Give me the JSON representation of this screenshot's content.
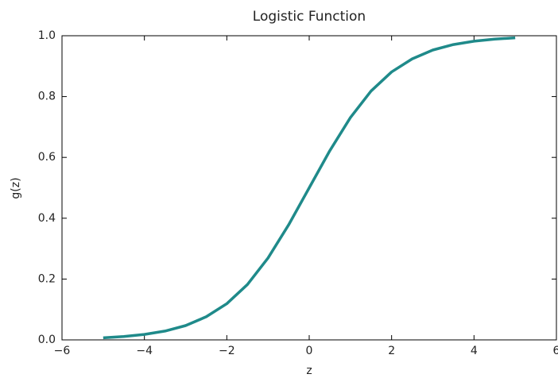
{
  "chart_data": {
    "type": "line",
    "title": "Logistic Function",
    "xlabel": "z",
    "ylabel": "g(z)",
    "x": [
      -5,
      -4.5,
      -4,
      -3.5,
      -3,
      -2.5,
      -2,
      -1.5,
      -1,
      -0.5,
      0,
      0.5,
      1,
      1.5,
      2,
      2.5,
      3,
      3.5,
      4,
      4.5,
      5
    ],
    "series": [
      {
        "name": "g(z)",
        "color": "#1f8a8a",
        "values": [
          0.007,
          0.011,
          0.018,
          0.029,
          0.047,
          0.076,
          0.119,
          0.182,
          0.269,
          0.378,
          0.5,
          0.622,
          0.731,
          0.818,
          0.881,
          0.924,
          0.953,
          0.971,
          0.982,
          0.989,
          0.993
        ]
      }
    ],
    "xlim": [
      -6,
      6
    ],
    "xticks": [
      {
        "value": -6,
        "label": "−6"
      },
      {
        "value": -4,
        "label": "−4"
      },
      {
        "value": -2,
        "label": "−2"
      },
      0,
      2,
      4,
      6
    ],
    "ylim": [
      0,
      1
    ],
    "yticks": [
      {
        "value": 0,
        "label": "0.0"
      },
      0.2,
      0.4,
      0.6,
      0.8,
      {
        "value": 1,
        "label": "1.0"
      }
    ],
    "grid": false
  }
}
